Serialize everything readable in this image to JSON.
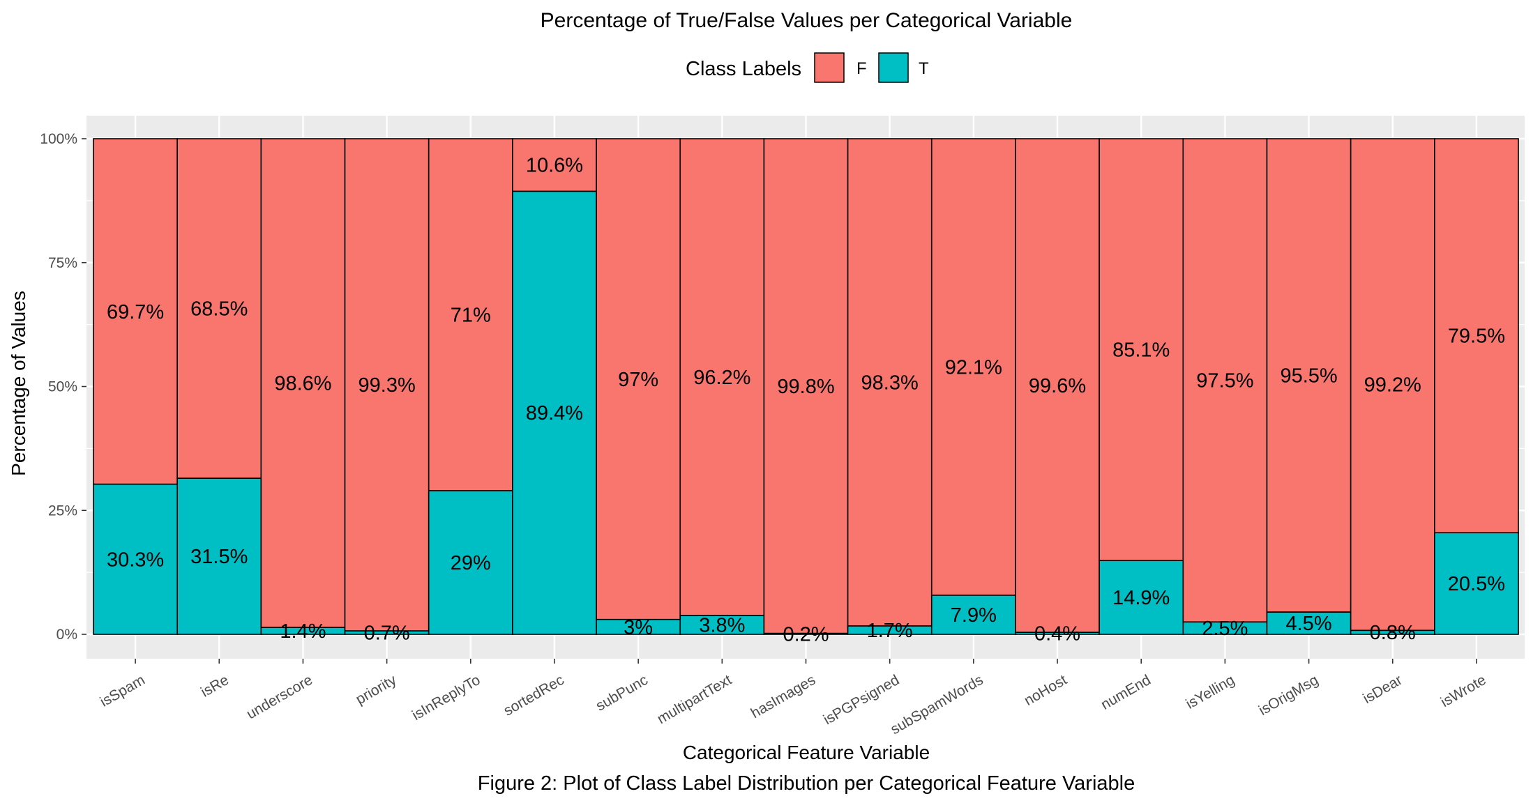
{
  "chart_data": {
    "type": "bar",
    "stacked": true,
    "title": "Percentage of True/False Values per Categorical Variable",
    "xlabel": "Categorical Feature Variable",
    "ylabel": "Percentage of Values",
    "ylim": [
      0,
      100
    ],
    "yticks": [
      "0%",
      "25%",
      "50%",
      "75%",
      "100%"
    ],
    "ytick_values": [
      0,
      25,
      50,
      75,
      100
    ],
    "legend": {
      "title": "Class Labels",
      "position": "top"
    },
    "categories": [
      "isSpam",
      "isRe",
      "underscore",
      "priority",
      "isInReplyTo",
      "sortedRec",
      "subPunc",
      "multipartText",
      "hasImages",
      "isPGPsigned",
      "subSpamWords",
      "noHost",
      "numEnd",
      "isYelling",
      "isOrigMsg",
      "isDear",
      "isWrote"
    ],
    "series": [
      {
        "name": "F",
        "color": "#F8766D",
        "values": [
          69.7,
          68.5,
          98.6,
          99.3,
          71,
          10.6,
          97,
          96.2,
          99.8,
          98.3,
          92.1,
          99.6,
          85.1,
          97.5,
          95.5,
          99.2,
          79.5
        ],
        "labels": [
          "69.7%",
          "68.5%",
          "98.6%",
          "99.3%",
          "71%",
          "10.6%",
          "97%",
          "96.2%",
          "99.8%",
          "98.3%",
          "92.1%",
          "99.6%",
          "85.1%",
          "97.5%",
          "95.5%",
          "99.2%",
          "79.5%"
        ]
      },
      {
        "name": "T",
        "color": "#00BFC4",
        "values": [
          30.3,
          31.5,
          1.4,
          0.7,
          29,
          89.4,
          3,
          3.8,
          0.2,
          1.7,
          7.9,
          0.4,
          14.9,
          2.5,
          4.5,
          0.8,
          20.5
        ],
        "labels": [
          "30.3%",
          "31.5%",
          "1.4%",
          "0.7%",
          "29%",
          "89.4%",
          "3%",
          "3.8%",
          "0.2%",
          "1.7%",
          "7.9%",
          "0.4%",
          "14.9%",
          "2.5%",
          "4.5%",
          "0.8%",
          "20.5%"
        ]
      }
    ],
    "grid": true,
    "panel_background": "#EBEBEB",
    "caption": "Figure 2: Plot of Class Label Distribution per Categorical Feature Variable"
  }
}
